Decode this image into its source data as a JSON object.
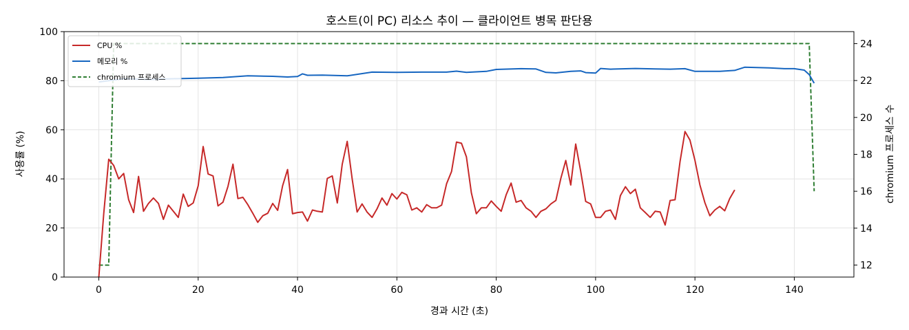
{
  "chart_data": {
    "type": "line",
    "title": "호스트(이 PC) 리소스 추이 — 클라이언트 병목 판단용",
    "xlabel": "경과 시간 (초)",
    "ylabel": "사용률 (%)",
    "y2label": "chromium 프로세스 수",
    "xlim": [
      -7,
      152
    ],
    "ylim": [
      0,
      100
    ],
    "y2lim": [
      11.35,
      24.65
    ],
    "xticks": [
      "0",
      "20",
      "40",
      "60",
      "80",
      "100",
      "120",
      "140"
    ],
    "yticks": [
      "0",
      "20",
      "40",
      "60",
      "80",
      "100"
    ],
    "y2ticks": [
      "12",
      "14",
      "16",
      "18",
      "20",
      "22",
      "24"
    ],
    "grid": true,
    "legend_position": "top-left",
    "series": [
      {
        "name": "CPU %",
        "color": "#c62828",
        "axis": "left",
        "style": "solid",
        "points": [
          [
            0,
            0
          ],
          [
            1,
            26
          ],
          [
            2,
            48
          ],
          [
            3,
            45.5
          ],
          [
            4,
            40
          ],
          [
            5,
            42.2
          ],
          [
            6,
            31.5
          ],
          [
            7,
            26.3
          ],
          [
            8,
            41
          ],
          [
            9,
            26.8
          ],
          [
            10,
            30
          ],
          [
            11,
            32.2
          ],
          [
            12,
            30
          ],
          [
            13,
            23.5
          ],
          [
            14,
            29.3
          ],
          [
            15,
            26.8
          ],
          [
            16,
            24.3
          ],
          [
            17,
            33.8
          ],
          [
            18,
            28.8
          ],
          [
            19,
            30.2
          ],
          [
            20,
            37.2
          ],
          [
            21,
            53.2
          ],
          [
            22,
            42
          ],
          [
            23,
            41.2
          ],
          [
            24,
            29
          ],
          [
            25,
            30.5
          ],
          [
            26,
            37
          ],
          [
            27,
            46
          ],
          [
            28,
            32
          ],
          [
            29,
            32.5
          ],
          [
            30,
            29.5
          ],
          [
            31,
            26
          ],
          [
            32,
            22.3
          ],
          [
            33,
            25
          ],
          [
            34,
            26
          ],
          [
            35,
            30
          ],
          [
            36,
            27.2
          ],
          [
            37,
            37.2
          ],
          [
            38,
            43.8
          ],
          [
            39,
            25.8
          ],
          [
            40,
            26.3
          ],
          [
            41,
            26.5
          ],
          [
            42,
            22.8
          ],
          [
            43,
            27.3
          ],
          [
            44,
            26.8
          ],
          [
            45,
            26.5
          ],
          [
            46,
            40.2
          ],
          [
            47,
            41.2
          ],
          [
            48,
            30.2
          ],
          [
            49,
            46
          ],
          [
            50,
            55.3
          ],
          [
            51,
            40
          ],
          [
            52,
            26.5
          ],
          [
            53,
            29.8
          ],
          [
            54,
            26.5
          ],
          [
            55,
            24.3
          ],
          [
            56,
            27.8
          ],
          [
            57,
            32.2
          ],
          [
            58,
            29.3
          ],
          [
            59,
            34
          ],
          [
            60,
            31.8
          ],
          [
            61,
            34.5
          ],
          [
            62,
            33.5
          ],
          [
            63,
            27.3
          ],
          [
            64,
            28.2
          ],
          [
            65,
            26.5
          ],
          [
            66,
            29.5
          ],
          [
            67,
            28.2
          ],
          [
            68,
            28.2
          ],
          [
            69,
            29.3
          ],
          [
            70,
            38
          ],
          [
            71,
            43
          ],
          [
            72,
            55
          ],
          [
            73,
            54.5
          ],
          [
            74,
            49
          ],
          [
            75,
            34.3
          ],
          [
            76,
            25.8
          ],
          [
            77,
            28.2
          ],
          [
            78,
            28.2
          ],
          [
            79,
            31
          ],
          [
            80,
            28.8
          ],
          [
            81,
            26.8
          ],
          [
            82,
            33.5
          ],
          [
            83,
            38.3
          ],
          [
            84,
            30.5
          ],
          [
            85,
            31.2
          ],
          [
            86,
            28.2
          ],
          [
            87,
            26.8
          ],
          [
            88,
            24.3
          ],
          [
            89,
            26.8
          ],
          [
            90,
            27.8
          ],
          [
            91,
            29.8
          ],
          [
            92,
            31.2
          ],
          [
            93,
            40.2
          ],
          [
            94,
            47.5
          ],
          [
            95,
            37.5
          ],
          [
            96,
            54.2
          ],
          [
            97,
            43.2
          ],
          [
            98,
            30.8
          ],
          [
            99,
            29.8
          ],
          [
            100,
            24.3
          ],
          [
            101,
            24.3
          ],
          [
            102,
            26.8
          ],
          [
            103,
            27.3
          ],
          [
            104,
            23.5
          ],
          [
            105,
            33.2
          ],
          [
            106,
            36.8
          ],
          [
            107,
            34
          ],
          [
            108,
            35.8
          ],
          [
            109,
            28.2
          ],
          [
            110,
            26.3
          ],
          [
            111,
            24.3
          ],
          [
            112,
            26.8
          ],
          [
            113,
            26.5
          ],
          [
            114,
            21.2
          ],
          [
            115,
            31.2
          ],
          [
            116,
            31.5
          ],
          [
            117,
            47
          ],
          [
            118,
            59.3
          ],
          [
            119,
            55.8
          ],
          [
            120,
            47.5
          ],
          [
            121,
            37.5
          ],
          [
            122,
            30.3
          ],
          [
            123,
            25
          ],
          [
            124,
            27.3
          ],
          [
            125,
            28.8
          ],
          [
            126,
            27
          ],
          [
            127,
            32
          ],
          [
            128,
            35.5
          ]
        ]
      },
      {
        "name": "메모리 %",
        "color": "#1565c0",
        "axis": "left",
        "style": "solid",
        "points": [
          [
            0,
            79.5
          ],
          [
            2,
            80
          ],
          [
            5,
            80.8
          ],
          [
            10,
            80.5
          ],
          [
            15,
            80.8
          ],
          [
            20,
            81
          ],
          [
            25,
            81.3
          ],
          [
            28,
            81.7
          ],
          [
            30,
            82
          ],
          [
            35,
            81.8
          ],
          [
            38,
            81.5
          ],
          [
            40,
            81.7
          ],
          [
            41,
            82.8
          ],
          [
            42,
            82.2
          ],
          [
            45,
            82.3
          ],
          [
            50,
            82
          ],
          [
            55,
            83.5
          ],
          [
            60,
            83.4
          ],
          [
            65,
            83.5
          ],
          [
            70,
            83.5
          ],
          [
            72,
            83.9
          ],
          [
            74,
            83.4
          ],
          [
            78,
            83.8
          ],
          [
            80,
            84.6
          ],
          [
            85,
            84.9
          ],
          [
            88,
            84.8
          ],
          [
            90,
            83.4
          ],
          [
            92,
            83.2
          ],
          [
            95,
            83.8
          ],
          [
            97,
            84
          ],
          [
            98,
            83.3
          ],
          [
            100,
            83.1
          ],
          [
            101,
            85
          ],
          [
            103,
            84.7
          ],
          [
            108,
            85
          ],
          [
            112,
            84.8
          ],
          [
            115,
            84.7
          ],
          [
            118,
            84.9
          ],
          [
            120,
            83.8
          ],
          [
            125,
            83.8
          ],
          [
            128,
            84.2
          ],
          [
            130,
            85.5
          ],
          [
            135,
            85.2
          ],
          [
            138,
            84.9
          ],
          [
            140,
            84.9
          ],
          [
            142,
            84.3
          ],
          [
            143,
            82.5
          ],
          [
            144,
            79
          ]
        ]
      },
      {
        "name": "chromium 프로세스",
        "color": "#2e7d32",
        "axis": "right",
        "style": "dashed",
        "points": [
          [
            0,
            12
          ],
          [
            2,
            12
          ],
          [
            3,
            24
          ],
          [
            10,
            24
          ],
          [
            20,
            24
          ],
          [
            40,
            24
          ],
          [
            60,
            24
          ],
          [
            80,
            24
          ],
          [
            100,
            24
          ],
          [
            120,
            24
          ],
          [
            140,
            24
          ],
          [
            143,
            24
          ],
          [
            144,
            16
          ]
        ]
      }
    ]
  }
}
